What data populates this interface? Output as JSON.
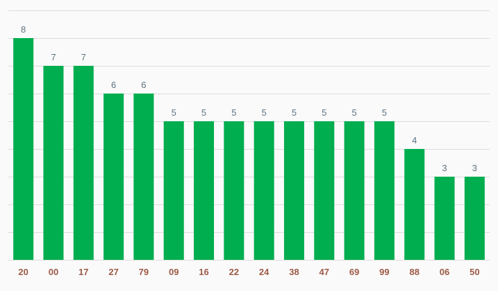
{
  "chart_data": {
    "type": "bar",
    "title": "",
    "xlabel": "",
    "ylabel": "",
    "categories": [
      "20",
      "00",
      "17",
      "27",
      "79",
      "09",
      "16",
      "22",
      "24",
      "38",
      "47",
      "69",
      "99",
      "88",
      "06",
      "50"
    ],
    "values": [
      8,
      7,
      7,
      6,
      6,
      5,
      5,
      5,
      5,
      5,
      5,
      5,
      5,
      4,
      3,
      3
    ],
    "ylim": [
      0,
      9
    ],
    "grid": true,
    "gridlines_every": 1,
    "data_labels": true,
    "colors": {
      "bar": "#00ae4f",
      "value_label": "#5f7380",
      "category_label": "#9c5a46",
      "grid": "#dcdcdc",
      "background": "#fafafa"
    }
  }
}
